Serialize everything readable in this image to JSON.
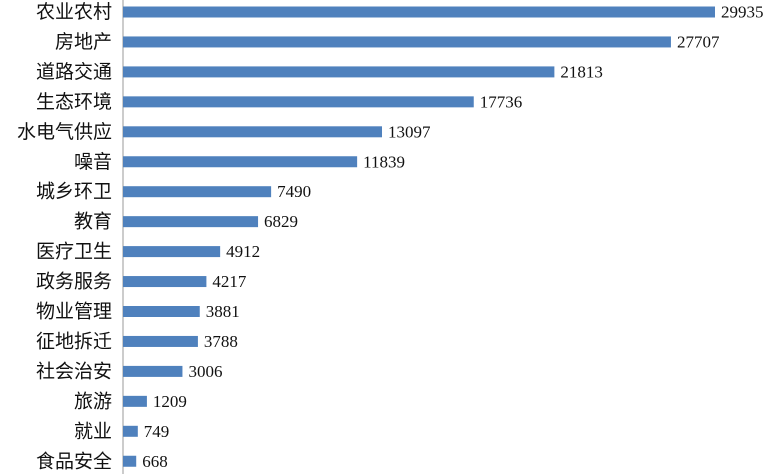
{
  "chart_data": {
    "type": "bar",
    "orientation": "horizontal",
    "categories": [
      "农业农村",
      "房地产",
      "道路交通",
      "生态环境",
      "水电气供应",
      "噪音",
      "城乡环卫",
      "教育",
      "医疗卫生",
      "政务服务",
      "物业管理",
      "征地拆迁",
      "社会治安",
      "旅游",
      "就业",
      "食品安全"
    ],
    "values": [
      29935,
      27707,
      21813,
      17736,
      13097,
      11839,
      7490,
      6829,
      4912,
      4217,
      3881,
      3788,
      3006,
      1209,
      749,
      668
    ],
    "title": "",
    "xlabel": "",
    "ylabel": "",
    "xlim": [
      0,
      29935
    ],
    "bar_color": "#4f81bd",
    "data_labels": true,
    "grid": false,
    "legend": "none"
  }
}
